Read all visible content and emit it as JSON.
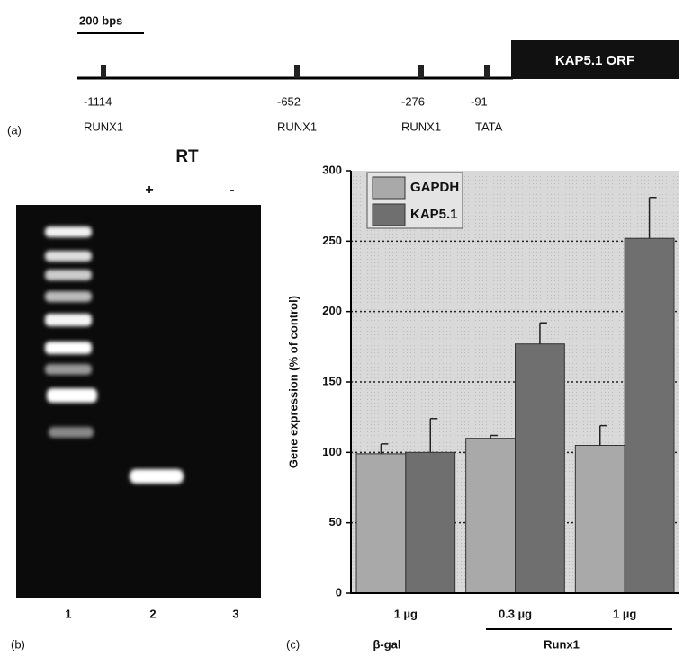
{
  "panel_a": {
    "label": "(a)",
    "scale_label": "200 bps",
    "orf_label": "KAP5.1 ORF",
    "sites": [
      {
        "position": "-1114",
        "name": "RUNX1"
      },
      {
        "position": "-652",
        "name": "RUNX1"
      },
      {
        "position": "-276",
        "name": "RUNX1"
      },
      {
        "position": "-91",
        "name": "TATA"
      }
    ]
  },
  "panel_b": {
    "label": "(b)",
    "title": "RT",
    "conditions": [
      "+",
      "-"
    ],
    "lanes": [
      "1",
      "2",
      "3"
    ]
  },
  "chart_data": {
    "type": "bar",
    "panel_label": "(c)",
    "ylabel": "Gene expression (% of control)",
    "categories": [
      "1 µg",
      "0.3 µg",
      "1 µg"
    ],
    "groups": [
      "β-gal",
      "Runx1"
    ],
    "series": [
      {
        "name": "GAPDH",
        "color": "#a9a9a9",
        "values": [
          99,
          110,
          105
        ],
        "errors": [
          7,
          2,
          14
        ]
      },
      {
        "name": "KAP5.1",
        "color": "#6f6f6f",
        "values": [
          100,
          177,
          252
        ],
        "errors": [
          24,
          15,
          29
        ]
      }
    ],
    "ylim": [
      0,
      300
    ],
    "yticks": [
      0,
      50,
      100,
      150,
      200,
      250,
      300
    ],
    "grid": true
  }
}
